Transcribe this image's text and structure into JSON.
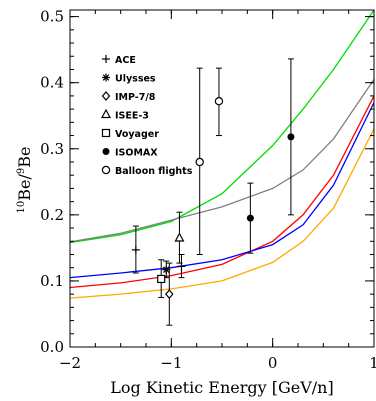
{
  "chart_data": {
    "type": "scatter",
    "xlabel": "Log Kinetic Energy [GeV/n]",
    "ylabel_parts": {
      "iso1": "10",
      "el1": "Be/",
      "iso2": "9",
      "el2": "Be"
    },
    "xlim": [
      -2,
      1
    ],
    "ylim": [
      0,
      0.51
    ],
    "x_ticks": [
      -2,
      -1,
      0,
      1
    ],
    "x_tick_labels": [
      "−2",
      "−1",
      "0",
      "1"
    ],
    "y_ticks": [
      0,
      0.1,
      0.2,
      0.3,
      0.4,
      0.5
    ],
    "y_tick_labels": [
      "0.0",
      "0.1",
      "0.2",
      "0.3",
      "0.4",
      "0.5"
    ],
    "grid": false,
    "legend_position": "top-left",
    "legend": [
      {
        "marker": "plus",
        "label": "ACE"
      },
      {
        "marker": "star",
        "label": "Ulysses"
      },
      {
        "marker": "diamond",
        "label": "IMP-7/8"
      },
      {
        "marker": "triangle",
        "label": "ISEE-3"
      },
      {
        "marker": "square",
        "label": "Voyager"
      },
      {
        "marker": "filled-circle",
        "label": "ISOMAX"
      },
      {
        "marker": "open-circle",
        "label": "Balloon flights"
      }
    ],
    "points": [
      {
        "marker": "plus",
        "x": -1.35,
        "y": 0.147,
        "ylo": 0.112,
        "yhi": 0.183
      },
      {
        "marker": "plus",
        "x": -0.9,
        "y": 0.122,
        "ylo": 0.105,
        "yhi": 0.14
      },
      {
        "marker": "star",
        "x": -1.05,
        "y": 0.117,
        "ylo": 0.105,
        "yhi": 0.13
      },
      {
        "marker": "diamond",
        "x": -1.02,
        "y": 0.08,
        "ylo": 0.033,
        "yhi": 0.127
      },
      {
        "marker": "triangle",
        "x": -0.92,
        "y": 0.165,
        "ylo": 0.127,
        "yhi": 0.204
      },
      {
        "marker": "square",
        "x": -1.1,
        "y": 0.103,
        "ylo": 0.075,
        "yhi": 0.132
      },
      {
        "marker": "open-circle",
        "x": -0.72,
        "y": 0.28,
        "ylo": 0.14,
        "yhi": 0.422
      },
      {
        "marker": "open-circle",
        "x": -0.53,
        "y": 0.372,
        "ylo": 0.32,
        "yhi": 0.422
      },
      {
        "marker": "filled-circle",
        "x": -0.22,
        "y": 0.195,
        "ylo": 0.142,
        "yhi": 0.248
      },
      {
        "marker": "filled-circle",
        "x": 0.18,
        "y": 0.318,
        "ylo": 0.2,
        "yhi": 0.436
      }
    ],
    "series": [
      {
        "color": "#00dd00",
        "x": [
          -2,
          -1.5,
          -1,
          -0.5,
          0,
          0.3,
          0.6,
          1
        ],
        "y": [
          0.158,
          0.17,
          0.19,
          0.232,
          0.305,
          0.36,
          0.42,
          0.51
        ]
      },
      {
        "color": "#808080",
        "x": [
          -2,
          -1.5,
          -1,
          -0.5,
          0,
          0.3,
          0.6,
          1
        ],
        "y": [
          0.159,
          0.172,
          0.192,
          0.212,
          0.24,
          0.268,
          0.315,
          0.405
        ]
      },
      {
        "color": "#ff0000",
        "x": [
          -2,
          -1.5,
          -1,
          -0.5,
          0,
          0.3,
          0.6,
          1
        ],
        "y": [
          0.09,
          0.097,
          0.108,
          0.125,
          0.16,
          0.2,
          0.26,
          0.38
        ]
      },
      {
        "color": "#0000ff",
        "x": [
          -2,
          -1.5,
          -1,
          -0.5,
          0,
          0.3,
          0.6,
          1
        ],
        "y": [
          0.105,
          0.112,
          0.12,
          0.132,
          0.155,
          0.185,
          0.245,
          0.37
        ]
      },
      {
        "color": "#ffaa00",
        "x": [
          -2,
          -1.5,
          -1,
          -0.5,
          0,
          0.3,
          0.6,
          1
        ],
        "y": [
          0.074,
          0.08,
          0.088,
          0.1,
          0.128,
          0.16,
          0.21,
          0.33
        ]
      }
    ]
  }
}
